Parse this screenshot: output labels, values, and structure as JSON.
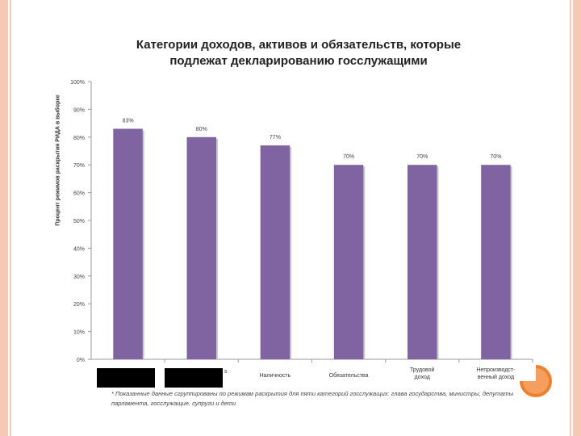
{
  "chart_data": {
    "type": "bar",
    "title_line1": "Категории доходов, активов и обязательств, которые",
    "title_line2": "подлежат декларированию госслужащими",
    "ylabel": "Процент режимов раскрытия РИДА в выборке",
    "ylim": [
      0,
      100
    ],
    "yticks": [
      "0%",
      "10%",
      "20%",
      "30%",
      "40%",
      "50%",
      "60%",
      "70%",
      "80%",
      "90%",
      "100%"
    ],
    "categories": [
      "",
      "s",
      "Наличность",
      "Обязательства",
      "Трудовой доход",
      "Непроизводст-венный доход"
    ],
    "values": [
      83,
      80,
      77,
      70,
      70,
      70
    ],
    "value_labels": [
      "83%",
      "80%",
      "77%",
      "70%",
      "70%",
      "70%"
    ],
    "bar_color": "#8064a2",
    "grid": false
  },
  "footnote": "* Показанные данные сгруппированы по режимам раскрытия для пяти категорий госслужащих: глава государства, министры, депутаты парламента, госслужащие, супруги и дети",
  "colors": {
    "frame": "#f6c9b6",
    "accent": "#f07f2a"
  }
}
